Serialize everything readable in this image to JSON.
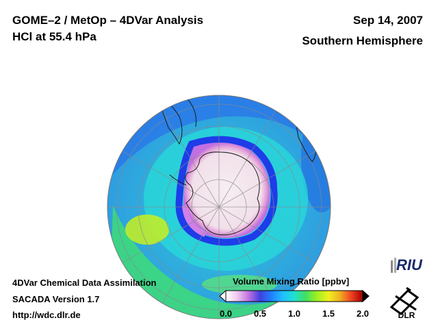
{
  "header": {
    "title": "GOME–2 / MetOp – 4DVar Analysis",
    "subtitle": "HCl at 55.4 hPa",
    "date": "Sep 14, 2007",
    "region": "Southern Hemisphere"
  },
  "footer": {
    "line1": "4DVar Chemical Data Assimilation",
    "line2": "SACADA Version 1.7",
    "line3": "http://wdc.dlr.de"
  },
  "colorbar": {
    "label": "Volume Mixing Ratio [ppbv]",
    "ticks": [
      "0.0",
      "0.5",
      "1.0",
      "1.5",
      "2.0"
    ],
    "min": 0.0,
    "max": 2.0,
    "colors": [
      "#ffffff",
      "#f0c8f0",
      "#c070e0",
      "#4040e0",
      "#2080ff",
      "#20c0ff",
      "#20e0d0",
      "#40e060",
      "#a0f020",
      "#f0f020",
      "#f0b020",
      "#f04020",
      "#a00000"
    ]
  },
  "logos": {
    "riu": "RIU",
    "dlr": "DLR"
  },
  "map": {
    "projection": "orthographic",
    "hemisphere": "south"
  }
}
